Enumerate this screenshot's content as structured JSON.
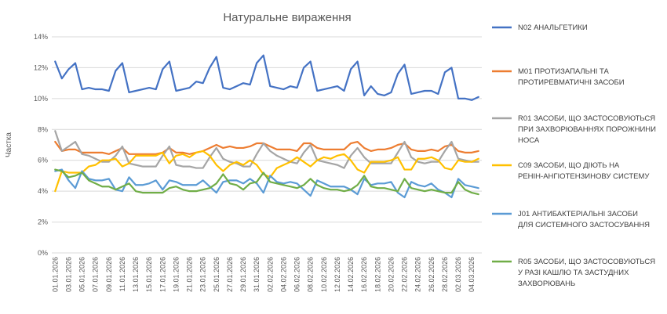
{
  "chart_data": {
    "type": "line",
    "title": "Натуральне вираження",
    "xlabel": "",
    "ylabel": "Частка",
    "ylim": [
      0,
      14
    ],
    "y_ticks": [
      "0%",
      "2%",
      "4%",
      "6%",
      "8%",
      "10%",
      "12%",
      "14%"
    ],
    "grid": true,
    "legend_position": "right",
    "x": [
      "01.01.2026",
      "02.01.2026",
      "03.01.2026",
      "04.01.2026",
      "05.01.2026",
      "06.01.2026",
      "07.01.2026",
      "08.01.2026",
      "09.01.2026",
      "10.01.2026",
      "11.01.2026",
      "12.01.2026",
      "13.01.2026",
      "14.01.2026",
      "15.01.2026",
      "16.01.2026",
      "17.01.2026",
      "18.01.2026",
      "19.01.2026",
      "20.01.2026",
      "21.01.2026",
      "22.01.2026",
      "23.01.2026",
      "24.01.2026",
      "25.01.2026",
      "26.01.2026",
      "27.01.2026",
      "28.01.2026",
      "29.01.2026",
      "30.01.2026",
      "31.01.2026",
      "01.02.2026",
      "02.02.2026",
      "03.02.2026",
      "04.02.2026",
      "05.02.2026",
      "06.02.2026",
      "07.02.2026",
      "08.02.2026",
      "09.02.2026",
      "10.02.2026",
      "11.02.2026",
      "12.02.2026",
      "13.02.2026",
      "14.02.2026",
      "15.02.2026",
      "16.02.2026",
      "17.02.2026",
      "18.02.2026",
      "19.02.2026",
      "20.02.2026",
      "21.02.2026",
      "22.02.2026",
      "23.02.2026",
      "24.02.2026",
      "25.02.2026",
      "26.02.2026",
      "27.02.2026",
      "28.02.2026",
      "01.03.2026",
      "02.03.2026",
      "03.03.2026",
      "04.03.2026",
      "05.03.2026"
    ],
    "x_tick_labels": [
      "01.01.2026",
      "",
      "03.01.2026",
      "",
      "05.01.2026",
      "",
      "07.01.2026",
      "",
      "09.01.2026",
      "",
      "11.01.2026",
      "",
      "13.01.2026",
      "",
      "15.01.2026",
      "",
      "17.01.2026",
      "",
      "19.01.2026",
      "",
      "21.01.2026",
      "",
      "23.01.2026",
      "",
      "25.01.2026",
      "",
      "27.01.2026",
      "",
      "29.01.2026",
      "",
      "31.01.2026",
      "",
      "02.02.2026",
      "",
      "04.02.2026",
      "",
      "06.02.2026",
      "",
      "08.02.2026",
      "",
      "10.02.2026",
      "",
      "12.02.2026",
      "",
      "14.02.2026",
      "",
      "16.02.2026",
      "",
      "18.02.2026",
      "",
      "20.02.2026",
      "",
      "22.02.2026",
      "",
      "24.02.2026",
      "",
      "26.02.2026",
      "",
      "28.02.2026",
      "",
      "02.03.2026",
      "",
      "04.03.2026",
      ""
    ],
    "series": [
      {
        "name": "N02 АНАЛЬГЕТИКИ",
        "color": "#4472C4",
        "values": [
          12.4,
          11.3,
          11.9,
          12.3,
          10.6,
          10.7,
          10.6,
          10.6,
          10.5,
          11.8,
          12.3,
          10.4,
          10.5,
          10.6,
          10.7,
          10.6,
          11.9,
          12.4,
          10.5,
          10.6,
          10.7,
          11.1,
          11.0,
          12.0,
          12.7,
          10.7,
          10.6,
          10.8,
          11.0,
          10.9,
          12.3,
          12.8,
          10.8,
          10.7,
          10.6,
          10.8,
          10.7,
          12.0,
          12.4,
          10.5,
          10.6,
          10.7,
          10.8,
          10.5,
          11.9,
          12.4,
          10.2,
          10.8,
          10.3,
          10.2,
          10.4,
          11.6,
          12.2,
          10.3,
          10.4,
          10.5,
          10.5,
          10.3,
          11.7,
          12.0,
          10.0,
          10.0,
          9.9,
          10.1
        ]
      },
      {
        "name": "M01 ПРОТИЗАПАЛЬНІ ТА ПРОТИРЕВМАТИЧНІ ЗАСОБИ",
        "color": "#ED7D31",
        "values": [
          7.2,
          6.6,
          6.7,
          6.7,
          6.5,
          6.5,
          6.5,
          6.5,
          6.4,
          6.6,
          6.8,
          6.4,
          6.4,
          6.4,
          6.4,
          6.4,
          6.5,
          6.8,
          6.5,
          6.5,
          6.4,
          6.5,
          6.6,
          6.8,
          7.0,
          6.8,
          6.9,
          6.8,
          6.8,
          6.9,
          7.1,
          7.1,
          6.9,
          6.7,
          6.7,
          6.7,
          6.6,
          7.1,
          7.1,
          6.8,
          6.7,
          6.7,
          6.7,
          6.7,
          7.1,
          7.2,
          6.8,
          6.6,
          6.7,
          6.7,
          6.8,
          7.0,
          7.1,
          6.7,
          6.6,
          6.6,
          6.7,
          6.6,
          6.9,
          7.0,
          6.6,
          6.5,
          6.5,
          6.6
        ]
      },
      {
        "name": "R01 ЗАСОБИ, ЩО ЗАСТОСОВУЮТЬСЯ ПРИ ЗАХВОРЮВАННЯХ ПОРОЖНИНИ НОСА",
        "color": "#A5A5A5",
        "values": [
          7.9,
          6.6,
          6.9,
          7.2,
          6.4,
          6.3,
          6.1,
          5.9,
          5.9,
          6.3,
          6.9,
          5.8,
          5.7,
          5.6,
          5.6,
          5.6,
          6.3,
          6.9,
          5.7,
          5.6,
          5.6,
          5.5,
          5.5,
          6.2,
          6.8,
          6.1,
          5.9,
          5.8,
          5.6,
          5.6,
          6.4,
          7.1,
          6.6,
          6.3,
          6.1,
          5.9,
          5.8,
          6.5,
          7.0,
          6.0,
          5.9,
          5.8,
          5.7,
          5.5,
          6.3,
          6.8,
          6.2,
          5.8,
          5.8,
          5.8,
          5.8,
          6.5,
          7.2,
          6.2,
          5.9,
          5.8,
          5.9,
          5.9,
          6.6,
          7.2,
          6.1,
          6.0,
          5.9,
          5.9
        ]
      },
      {
        "name": "C09 ЗАСОБИ, ЩО ДІЮТЬ НА РЕНІН-АНГІОТЕНЗИНОВУ СИСТЕМУ",
        "color": "#FFC000",
        "values": [
          4.0,
          5.3,
          5.2,
          5.2,
          5.2,
          5.6,
          5.7,
          6.0,
          6.0,
          6.1,
          5.6,
          5.8,
          6.3,
          6.3,
          6.3,
          6.3,
          6.5,
          5.8,
          6.3,
          6.4,
          6.2,
          6.5,
          6.6,
          6.3,
          5.7,
          5.3,
          5.7,
          5.9,
          5.7,
          6.0,
          5.7,
          5.1,
          4.9,
          5.5,
          5.7,
          5.9,
          6.2,
          5.9,
          5.6,
          6.0,
          6.2,
          6.1,
          6.3,
          6.4,
          6.0,
          5.4,
          5.2,
          5.9,
          5.9,
          5.9,
          6.0,
          6.2,
          5.4,
          5.4,
          6.1,
          6.1,
          6.2,
          6.0,
          5.5,
          5.4,
          6.0,
          5.9,
          5.9,
          6.1
        ]
      },
      {
        "name": "J01 АНТИБАКТЕРІАЛЬНІ ЗАСОБИ ДЛЯ СИСТЕМНОГО ЗАСТОСУВАННЯ",
        "color": "#5B9BD5",
        "values": [
          5.3,
          5.4,
          4.7,
          4.2,
          5.3,
          4.8,
          4.7,
          4.7,
          4.8,
          4.1,
          4.0,
          4.9,
          4.4,
          4.4,
          4.5,
          4.7,
          4.1,
          4.7,
          4.6,
          4.4,
          4.4,
          4.4,
          4.7,
          4.3,
          3.9,
          4.6,
          4.7,
          4.7,
          4.5,
          4.8,
          4.5,
          3.9,
          5.0,
          4.6,
          4.5,
          4.6,
          4.5,
          4.1,
          3.7,
          4.7,
          4.5,
          4.3,
          4.3,
          4.3,
          4.1,
          3.8,
          4.8,
          4.4,
          4.5,
          4.5,
          4.6,
          3.9,
          3.6,
          4.6,
          4.4,
          4.3,
          4.5,
          4.1,
          3.9,
          3.6,
          4.8,
          4.4,
          4.3,
          4.2
        ]
      },
      {
        "name": "R05 ЗАСОБИ, ЩО ЗАСТОСОВУЮТЬСЯ У РАЗІ КАШЛЮ ТА ЗАСТУДНИХ ЗАХВОРЮВАНЬ",
        "color": "#70AD47",
        "values": [
          5.4,
          5.3,
          4.9,
          5.0,
          5.2,
          4.7,
          4.5,
          4.3,
          4.3,
          4.1,
          4.3,
          4.5,
          4.0,
          3.9,
          3.9,
          3.9,
          3.9,
          4.2,
          4.3,
          4.1,
          4.0,
          4.0,
          4.1,
          4.2,
          4.5,
          5.1,
          4.5,
          4.4,
          4.1,
          4.5,
          4.6,
          5.2,
          4.6,
          4.5,
          4.4,
          4.3,
          4.2,
          4.4,
          4.8,
          4.4,
          4.2,
          4.1,
          4.1,
          4.0,
          4.1,
          4.4,
          5.0,
          4.3,
          4.2,
          4.2,
          4.1,
          4.0,
          4.8,
          4.2,
          4.1,
          4.0,
          4.1,
          4.0,
          3.9,
          3.9,
          4.6,
          4.1,
          3.9,
          3.8
        ]
      }
    ]
  }
}
